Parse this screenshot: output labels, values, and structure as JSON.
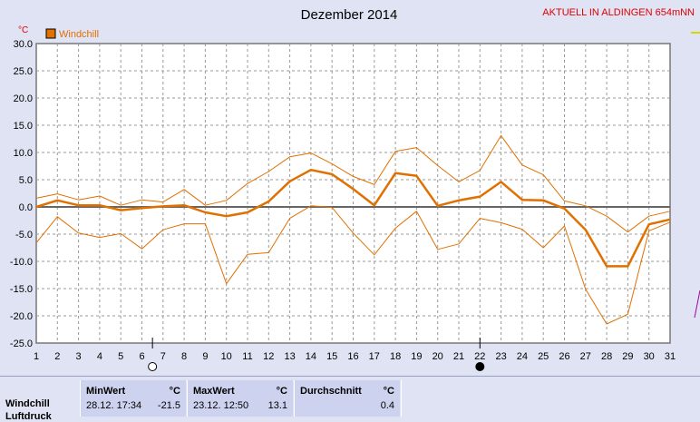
{
  "title": "Dezember 2014",
  "station": "AKTUELL IN ALDINGEN 654mNN",
  "unit": "°C",
  "legend": {
    "label": "Windchill",
    "color": "#e07000"
  },
  "colors": {
    "plot_bg": "#ffffff",
    "frame": "#777777",
    "grid": "#999999",
    "zero": "#666666",
    "series": "#e07000"
  },
  "chart_data": {
    "type": "line",
    "title": "Dezember 2014",
    "ylabel": "°C",
    "ylim": [
      -25,
      30
    ],
    "yticks": [
      "30.0",
      "25.0",
      "20.0",
      "15.0",
      "10.0",
      "5.0",
      "0.0",
      "-5.0",
      "-10.0",
      "-15.0",
      "-20.0",
      "-25.0"
    ],
    "xlim": [
      1,
      31
    ],
    "grid": true,
    "legend_position": "top-left",
    "x": [
      1,
      2,
      3,
      4,
      5,
      6,
      7,
      8,
      9,
      10,
      11,
      12,
      13,
      14,
      15,
      16,
      17,
      18,
      19,
      20,
      21,
      22,
      23,
      24,
      25,
      26,
      27,
      28,
      29,
      30,
      31
    ],
    "series": [
      {
        "name": "Windchill",
        "role": "avg",
        "values": [
          0,
          1.2,
          0.3,
          0.3,
          -0.6,
          -0.2,
          0.1,
          0.3,
          -1,
          -1.7,
          -1,
          1,
          4.7,
          6.8,
          6,
          3.3,
          0.3,
          6.2,
          5.7,
          0.2,
          1.2,
          1.9,
          4.6,
          1.3,
          1.2,
          -0.3,
          -4.2,
          -10.9,
          -10.9,
          -3.2,
          -2.3
        ]
      },
      {
        "role": "max",
        "values": [
          1.6,
          2.4,
          1.3,
          2,
          0.3,
          1.3,
          0.9,
          3.2,
          0.3,
          1.2,
          4.3,
          6.5,
          9.2,
          9.9,
          7.9,
          5.6,
          4.1,
          10.2,
          10.9,
          7.6,
          4.6,
          6.7,
          13.1,
          7.7,
          5.9,
          1.1,
          0.2,
          -1.7,
          -4.6,
          -1.7,
          -0.8
        ]
      },
      {
        "role": "min",
        "values": [
          -6.6,
          -1.8,
          -4.8,
          -5.6,
          -4.9,
          -7.7,
          -4.2,
          -3.1,
          -3.1,
          -14.1,
          -8.7,
          -8.4,
          -2.1,
          0.2,
          -0.1,
          -4.8,
          -8.8,
          -3.9,
          -0.8,
          -7.8,
          -6.8,
          -2.1,
          -2.9,
          -4.1,
          -7.5,
          -3.5,
          -15.1,
          -21.5,
          -19.7,
          -4.4,
          -2.8
        ]
      }
    ],
    "markers": [
      {
        "type": "open-circle",
        "x": 6.5
      },
      {
        "type": "filled-circle",
        "x": 22
      }
    ]
  },
  "stats": {
    "row_label": "Windchill",
    "row_label_2": "Luftdruck",
    "min": {
      "header": "MinWert",
      "unit": "°C",
      "time": "28.12.  17:34",
      "value": "-21.5"
    },
    "max": {
      "header": "MaxWert",
      "unit": "°C",
      "time": "23.12.  12:50",
      "value": "13.1"
    },
    "avg": {
      "header": "Durchschnitt",
      "unit": "°C",
      "value": "0.4"
    }
  }
}
